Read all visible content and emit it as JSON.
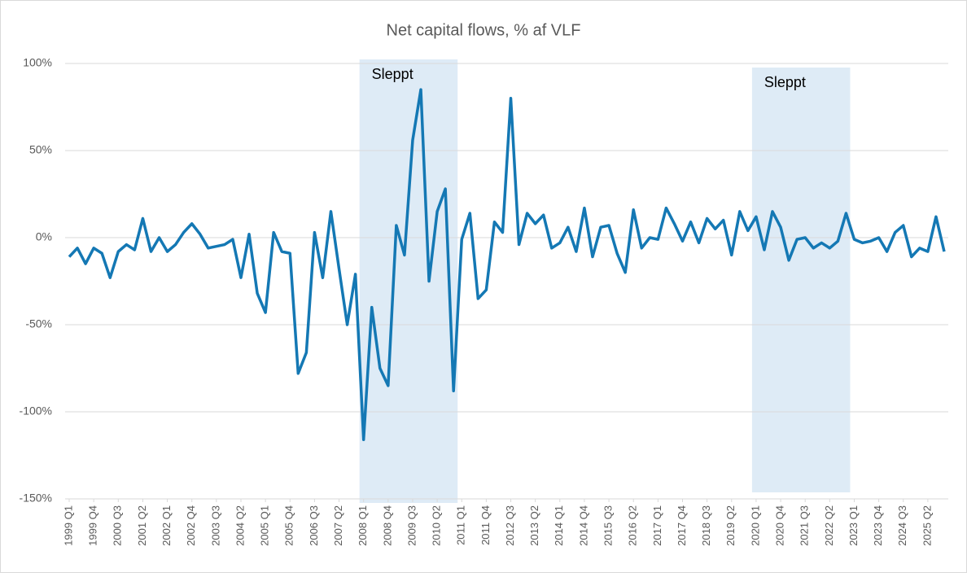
{
  "chart_data": {
    "type": "line",
    "title": "Net capital flows, % af VLF",
    "categories": [
      "1999 Q1",
      null,
      null,
      "1999 Q4",
      null,
      null,
      "2000 Q3",
      null,
      null,
      "2001 Q2",
      null,
      null,
      "2002 Q1",
      null,
      null,
      "2002 Q4",
      null,
      null,
      "2003 Q3",
      null,
      null,
      "2004 Q2",
      null,
      null,
      "2005 Q1",
      null,
      null,
      "2005 Q4",
      null,
      null,
      "2006 Q3",
      null,
      null,
      "2007 Q2",
      null,
      null,
      "2008 Q1",
      null,
      null,
      "2008 Q4",
      null,
      null,
      "2009 Q3",
      null,
      null,
      "2010 Q2",
      null,
      null,
      "2011 Q1",
      null,
      null,
      "2011 Q4",
      null,
      null,
      "2012 Q3",
      null,
      null,
      "2013 Q2",
      null,
      null,
      "2014 Q1",
      null,
      null,
      "2014 Q4",
      null,
      null,
      "2015 Q3",
      null,
      null,
      "2016 Q2",
      null,
      null,
      "2017 Q1",
      null,
      null,
      "2017 Q4",
      null,
      null,
      "2018 Q3",
      null,
      null,
      "2019 Q2",
      null,
      null,
      "2020 Q1",
      null,
      null,
      "2020 Q4",
      null,
      null,
      "2021 Q3",
      null,
      null,
      "2022 Q2",
      null,
      null,
      "2023 Q1",
      null,
      null,
      "2023 Q4",
      null,
      null,
      "2024 Q3",
      null,
      null,
      "2025 Q2",
      null,
      null
    ],
    "series": [
      {
        "color": "#1478b4",
        "values": [
          -11,
          -6,
          -15,
          -6,
          -9,
          -23,
          -8,
          -4,
          -7,
          11,
          -8,
          0,
          -8,
          -4,
          3,
          8,
          2,
          -6,
          -5,
          -4,
          -1,
          -23,
          2,
          -32,
          -43,
          3,
          -8,
          -9,
          -78,
          -66,
          3,
          -23,
          15,
          -18,
          -50,
          -21,
          -116,
          -40,
          -75,
          -85,
          7,
          -10,
          56,
          85,
          -25,
          15,
          28,
          -88,
          -1,
          14,
          -35,
          -30,
          9,
          3,
          80,
          -4,
          14,
          8,
          13,
          -6,
          -3,
          6,
          -8,
          17,
          -11,
          6,
          7,
          -9,
          -20,
          16,
          -6,
          0,
          -1,
          17,
          8,
          -2,
          9,
          -3,
          11,
          5,
          10,
          -10,
          15,
          4,
          12,
          -7,
          15,
          6,
          -13,
          -1,
          0,
          -6,
          -3,
          -6,
          -2,
          14,
          -1,
          -3,
          -2,
          0,
          -8,
          3,
          7,
          -11,
          -6,
          -8,
          12,
          -8
        ]
      }
    ],
    "ylim": [
      -150,
      100
    ],
    "yticks": [
      {
        "value": -150,
        "label": "-150%"
      },
      {
        "value": -100,
        "label": "-100%"
      },
      {
        "value": -50,
        "label": "-50%"
      },
      {
        "value": 0,
        "label": "0%"
      },
      {
        "value": 50,
        "label": "50%"
      },
      {
        "value": 100,
        "label": "100%"
      }
    ],
    "grid": true,
    "shaded_regions": [
      {
        "label": "Sleppt",
        "from": "2008 Q1",
        "to": "2011 Q1",
        "color": "#deebf6"
      },
      {
        "label": "Sleppt",
        "from": "2020 Q1",
        "to": "2023 Q1",
        "color": "#deebf6"
      }
    ]
  }
}
